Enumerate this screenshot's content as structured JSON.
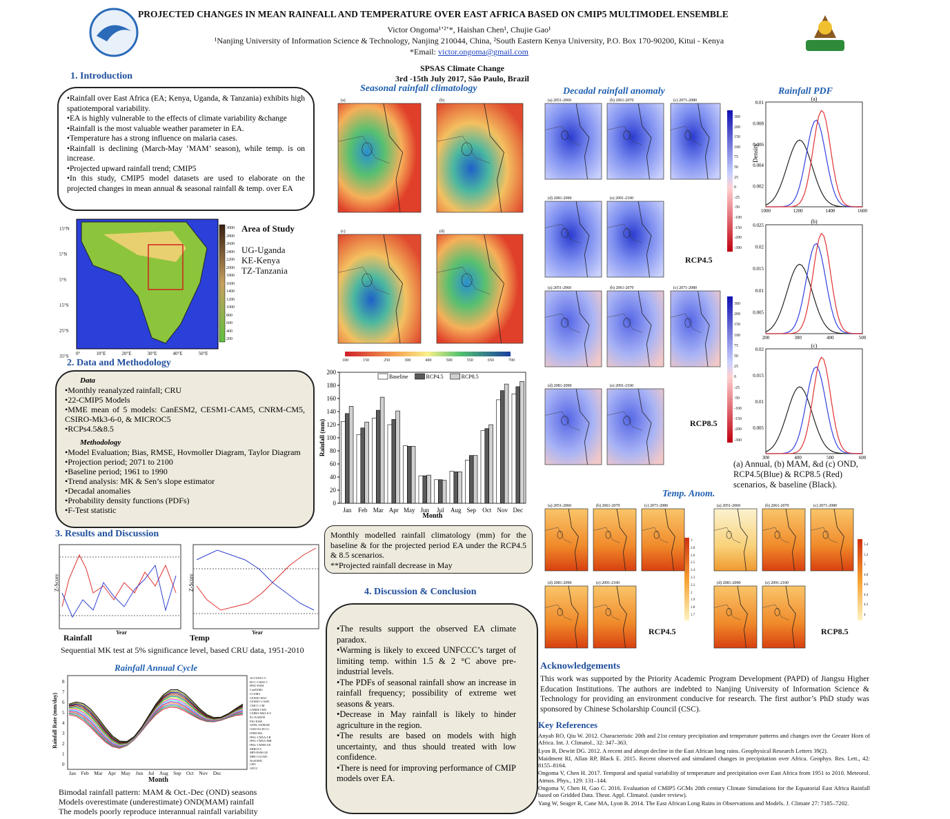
{
  "header": {
    "title": "PROJECTED CHANGES IN MEAN RAINFALL AND TEMPERATURE OVER EAST AFRICA BASED ON CMIP5 MULTIMODEL ENSEMBLE",
    "authors": "Victor Ongoma¹ʼ²ʼ*, Haishan Chen¹, Chujie Gao¹",
    "affiliation": "¹Nanjing University of Information Science & Technology, Nanjing 210044, China, ²South Eastern Kenya University, P.O. Box 170-90200, Kitui - Kenya",
    "email_label": "*Email:",
    "email": "victor.ongoma@gmail.com",
    "conference": "SPSAS Climate Change",
    "dates": "3rd -15th July 2017, São Paulo, Brazil"
  },
  "intro": {
    "heading": "1. Introduction",
    "items": [
      "Rainfall over East Africa (EA; Kenya, Uganda, & Tanzania) exhibits high spatiotemporal variability.",
      "EA is highly vulnerable to the effects of climate variability &change",
      "Rainfall is the most valuable weather parameter in EA.",
      "Temperature has a strong influence on malaria cases.",
      "Rainfall is declining (March-May ‘MAM’ season), while temp. is on increase.",
      "Projected upward rainfall trend; CMIP5",
      "In this study, CMIP5 model datasets are used to elaborate on the projected changes in mean annual & seasonal rainfall & temp. over EA"
    ]
  },
  "study_area": {
    "title": "Area of Study",
    "countries": [
      "UG-Uganda",
      "KE-Kenya",
      "TZ-Tanzania"
    ],
    "elevation_ticks": [
      "3000",
      "2800",
      "2600",
      "2400",
      "2200",
      "2000",
      "1800",
      "1600",
      "1400",
      "1200",
      "1000",
      "800",
      "600",
      "400",
      "200"
    ],
    "lat_ticks": [
      "15°N",
      "5°N",
      "5°S",
      "15°S",
      "25°S",
      "35°S"
    ],
    "lon_ticks": [
      "0°",
      "10°E",
      "20°E",
      "30°E",
      "40°E",
      "50°E"
    ]
  },
  "methods": {
    "heading": "2. Data and Methodology",
    "data_title": "Data",
    "data_items": [
      "Monthly reanalyzed rainfall; CRU",
      "22-CMIP5 Models",
      "MME mean of 5 models: CanESM2, CESM1-CAM5, CNRM-CM5, CSIRO-Mk3-6-0, & MICROC5",
      "RCPs4.5&8.5"
    ],
    "method_title": "Methodology",
    "method_items": [
      "Model Evaluation; Bias, RMSE, Hovmoller Diagram, Taylor Diagram",
      "Projection period; 2071 to 2100",
      "Baseline period; 1961 to 1990",
      "Trend analysis: MK & Sen’s slope estimator",
      "Decadal anomalies",
      "Probability density functions (PDFs)",
      "F-Test statistic"
    ]
  },
  "results": {
    "heading": "3. Results and Discussion",
    "z_label": "Z-Score",
    "year_label": "Year",
    "rainfall_label": "Rainfall",
    "temp_label": "Temp",
    "mk_caption": "Sequential MK test at 5% significance level, based CRU data, 1951-2010",
    "cycle_title": "Rainfall Annual Cycle",
    "cycle_ylabel": "Rainfall Rate (mm/day)",
    "cycle_yticks": [
      "0",
      "1",
      "2",
      "3",
      "4",
      "5",
      "6",
      "7",
      "8"
    ],
    "cycle_models": [
      "ACCESS1-3",
      "BCC-CSM1-1",
      "BNU-ESM",
      "CanESM2",
      "CCSM4",
      "CESM1-BGC",
      "CESM1-CAM5",
      "CMCC-CM",
      "CNRM-CM5",
      "CSIRO-Mk3-6-0",
      "EC-EARTH",
      "FIO-ESM",
      "GFDL-ESM2M",
      "GISS-E2-H-CC",
      "INMCM4",
      "IPSL-CM5A-LR",
      "IPSL-CM5A-MR",
      "IPSL-CM5B-LR",
      "MIROC5",
      "MPI-ESM-LR",
      "MRI-CGCM3",
      "NorESM1",
      "CRU",
      "GPCC"
    ],
    "cycle_caption": [
      "Bimodal rainfall pattern: MAM & Oct.-Dec (OND) seasons",
      "Models overestimate (underestimate) OND(MAM) rainfall",
      "The models poorly reproduce interannual rainfall variability"
    ]
  },
  "figures": {
    "seasonal_title": "Seasonal rainfall climatology",
    "seasonal_panels": [
      "(a)",
      "(b)",
      "(c)",
      "(d)"
    ],
    "seasonal_ticks": [
      "100",
      "150",
      "250",
      "300",
      "400",
      "500",
      "550",
      "650",
      "700"
    ],
    "decadal_title": "Decadal rainfall anomaly",
    "decade_panels": [
      "(a) 2051-2060",
      "(b) 2061-2070",
      "(c) 2071-2080",
      "(d) 2081-2090",
      "(e) 2091-2100"
    ],
    "decadal_ticks": [
      "300",
      "200",
      "150",
      "100",
      "75",
      "50",
      "25",
      "0",
      "-25",
      "-50",
      "-100",
      "-150",
      "-200",
      "-300"
    ],
    "rcp45": "RCP4.5",
    "rcp85": "RCP8.5",
    "pdf_title": "Rainfall PDF",
    "pdf_panels": [
      "(a)",
      "(b)",
      "(c)"
    ],
    "pdf_ylabel": "Density",
    "pdf_xticks": [
      [
        "1000",
        "1200",
        "1400",
        "1600"
      ],
      [
        "200",
        "300",
        "400",
        "500"
      ],
      [
        "300",
        "400",
        "500",
        "600"
      ]
    ],
    "pdf_yticks": [
      [
        "0.01",
        "0.008",
        "0.006",
        "0.004",
        "0.002"
      ],
      [
        "0.025",
        "0.02",
        "0.015",
        "0.01",
        "0.005"
      ],
      [
        "0.02",
        "0.015",
        "0.01",
        "0.005"
      ]
    ],
    "pdf_caption": "(a) Annual, (b) MAM, &d (c) OND, RCP4.5(Blue) & RCP8.5 (Red) scenarios, & baseline (Black).",
    "temp_title": "Temp. Anom.",
    "temp_ticks_45": [
      "3",
      "2.8",
      "2.6",
      "2.5",
      "2.4",
      "2.3",
      "2.2",
      "2",
      "1.9",
      "1.8",
      "1.7"
    ],
    "temp_ticks_85": [
      "5.4",
      "5.2",
      "5",
      "4.8",
      "4.6",
      "4.4",
      "4.2",
      "4"
    ],
    "bar_caption": "Monthly modelled rainfall climatology (mm) for the baseline & for the projected period EA under the RCP4.5 & 8.5 scenarios.",
    "bar_note": "**Projected rainfall decrease in May"
  },
  "chart_data": {
    "type": "bar",
    "x_label": "Month",
    "y_label": "Rainfall (mm)",
    "categories": [
      "Jan",
      "Feb",
      "Mar",
      "Apr",
      "May",
      "Jun",
      "Jul",
      "Aug",
      "Sep",
      "Oct",
      "Nov",
      "Dec"
    ],
    "series": [
      {
        "name": "Baseline",
        "color": "#ffffff",
        "values": [
          125,
          105,
          130,
          120,
          88,
          42,
          36,
          49,
          66,
          111,
          158,
          167
        ]
      },
      {
        "name": "RCP4.5",
        "color": "#5a5a5a",
        "values": [
          137,
          115,
          142,
          128,
          87,
          42,
          36,
          48,
          73,
          114,
          172,
          178
        ]
      },
      {
        "name": "RCP8.5",
        "color": "#cfcfcf",
        "values": [
          148,
          124,
          162,
          141,
          87,
          43,
          35,
          48,
          73,
          120,
          182,
          186
        ]
      }
    ],
    "ylim": [
      0,
      200
    ],
    "yticks": [
      0,
      20,
      40,
      60,
      80,
      100,
      120,
      140,
      160,
      180,
      200
    ],
    "legend": "top"
  },
  "discussion": {
    "heading": "4. Discussion & Conclusion",
    "items": [
      "The results support the observed EA climate paradox.",
      "Warming is likely to exceed UNFCCC’s target of limiting temp. within 1.5 & 2 °C above pre-industrial levels.",
      "The PDFs of seasonal rainfall show an increase in rainfall frequency; possibility of extreme wet seasons & years.",
      "Decrease in May rainfall is likely to hinder agriculture in the region.",
      "The results are based on models with high uncertainty, and thus should treated with low confidence.",
      "There is need for improving performance of CMIP models over EA."
    ]
  },
  "ack": {
    "heading": "Acknowledgements",
    "text": "This work was supported by the Priority Academic Program Development (PAPD) of Jiangsu Higher Education Institutions. The authors are indebted to Nanjing University of Information Science & Technology for providing an environment conducive for research. The first author’s PhD study was sponsored by Chinese Scholarship Council (CSC)."
  },
  "refs": {
    "heading": "Key References",
    "items": [
      "Anyah RO, Qiu W. 2012. Characteristic 20th and 21st century precipitation and temperature patterns and changes over the Greater Horn of Africa. Int. J. Climatol., 32: 347–363.",
      "Lyon B, Dewitt DG. 2012. A recent and abrupt decline in the East African long rains. Geophysical Research Letters 39(2).",
      "Maidment RI, Allan RP, Black E. 2015. Recent observed and simulated changes in precipitation over Africa. Geophys. Res. Lett., 42: 8155–8164.",
      "Ongoma V, Chen H. 2017. Temporal and spatial variability of temperature and precipitation over East Africa from 1951 to 2010. Meteorol. Atmos. Phys., 129: 131–144.",
      "Ongoma V, Chen H, Gao C. 2016. Evaluation of CMIP5 GCMs 20th century Climate Simulations for the Equatorial East Africa Rainfall based on Gridded Data. Theor. Appl. Climatol. (under review).",
      "Yang W, Seager R, Cane MA, Lyon B. 2014. The East African Long Rains in Observations and Models. J. Climate 27: 7185–7202."
    ]
  }
}
